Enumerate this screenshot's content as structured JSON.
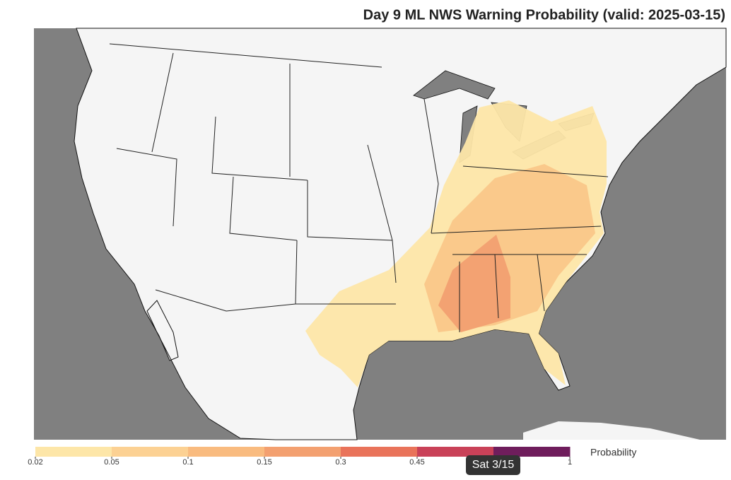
{
  "title": "Day 9 ML NWS Warning Probability (valid: 2025-03-15)",
  "legend": {
    "title": "Probability",
    "ticks": [
      0.02,
      0.05,
      0.1,
      0.15,
      0.3,
      0.45,
      1
    ],
    "colors": [
      "#fde6a8",
      "#fcd193",
      "#f9bb7f",
      "#f3a070",
      "#e9735a",
      "#c94158",
      "#6f1d5c"
    ]
  },
  "tooltip": "Sat 3/15"
}
